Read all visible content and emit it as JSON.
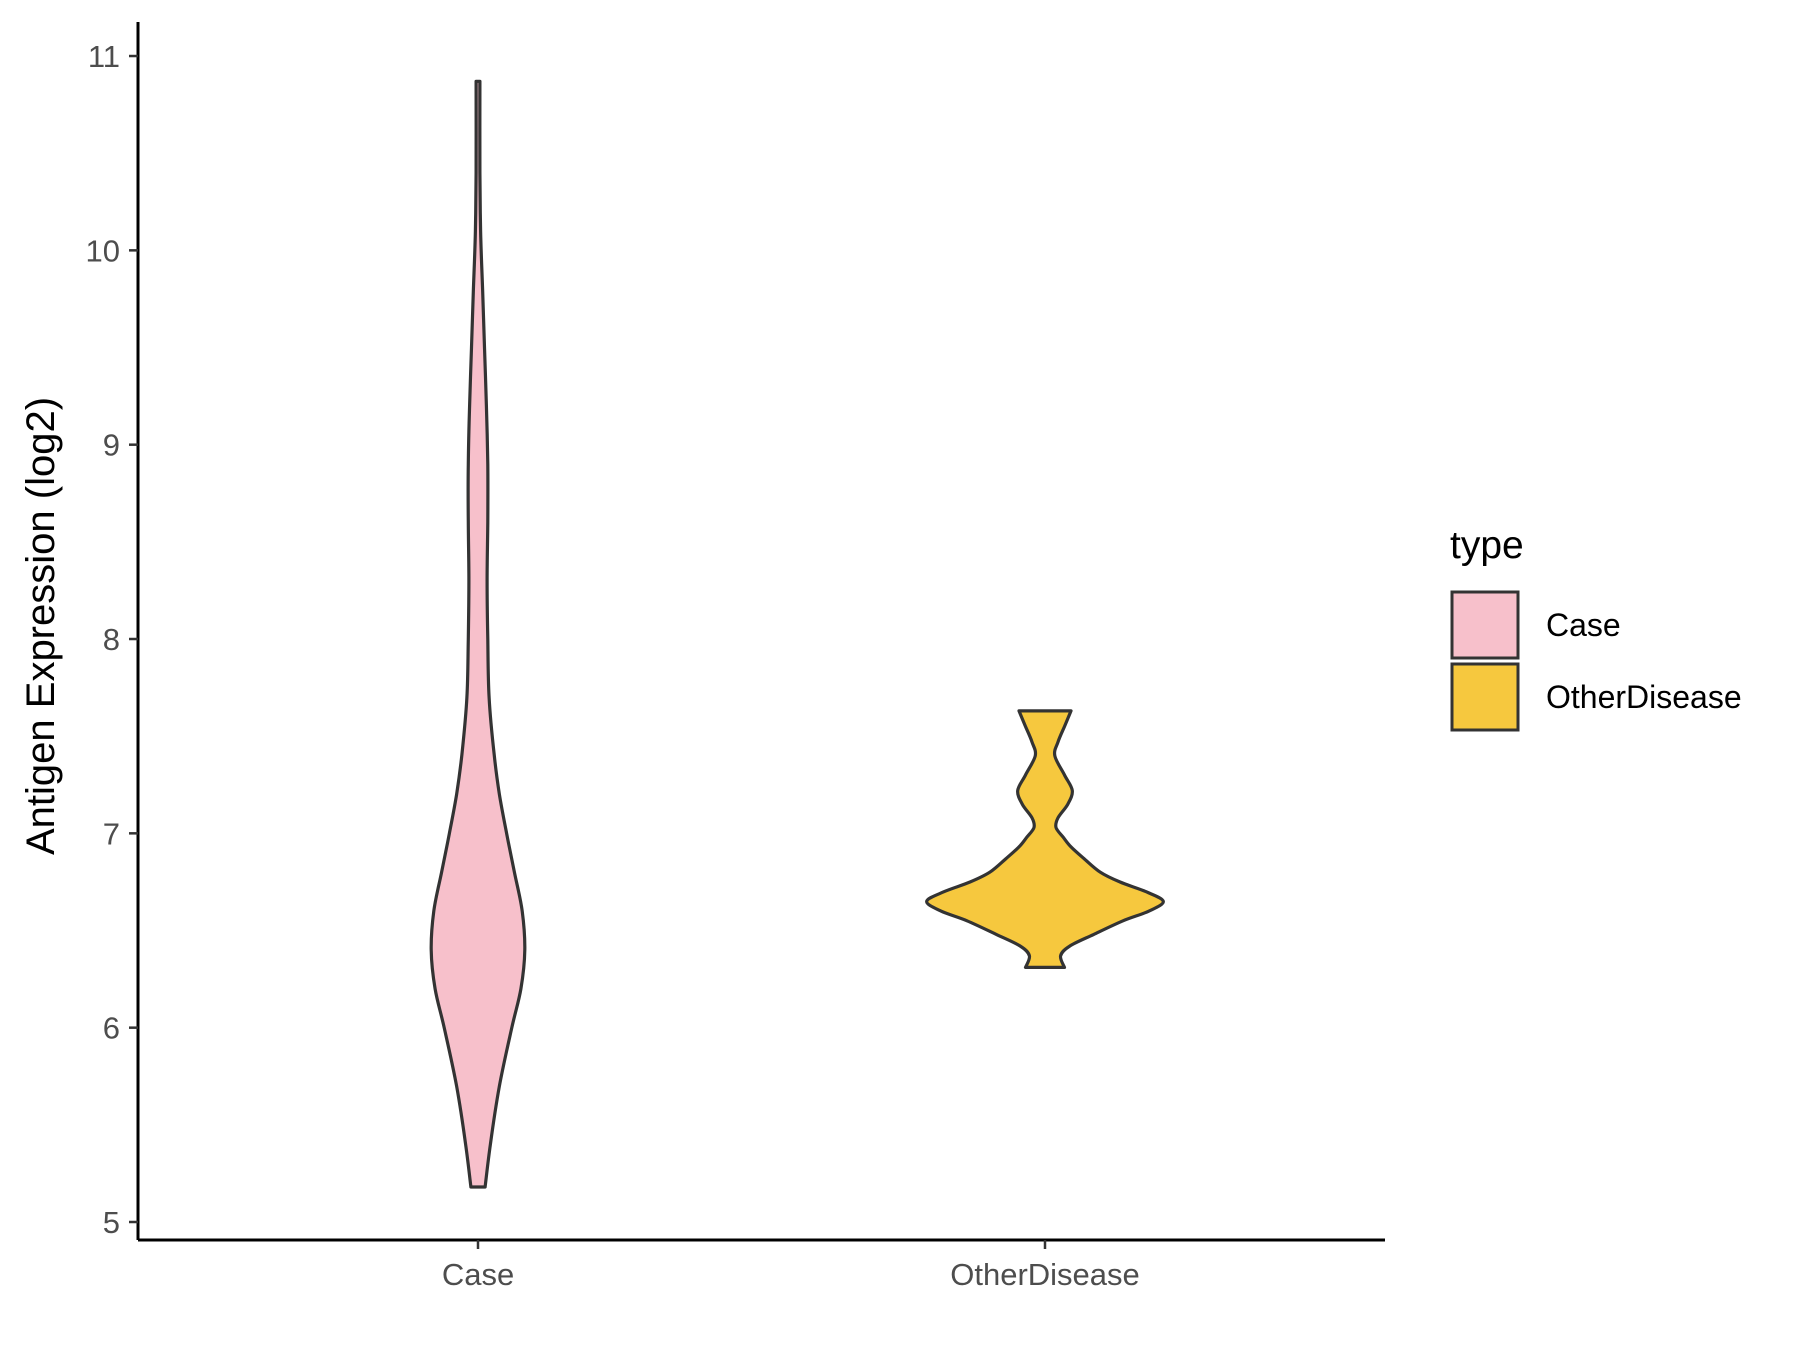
{
  "chart_data": {
    "type": "violin",
    "title": "",
    "xlabel": "",
    "ylabel": "Antigen Expression (log2)",
    "ylim": [
      4.95,
      11.2
    ],
    "yticks": [
      "5",
      "6",
      "7",
      "8",
      "9",
      "10",
      "11"
    ],
    "categories": [
      "Case",
      "OtherDisease"
    ],
    "grid": false,
    "legend": {
      "title": "type",
      "position": "right",
      "entries": [
        "Case",
        "OtherDisease"
      ]
    },
    "series": [
      {
        "category": "Case",
        "color": "#F7C0CB",
        "min": 5.18,
        "max": 10.87,
        "density_profile": [
          [
            5.18,
            0.11
          ],
          [
            5.4,
            0.19
          ],
          [
            5.7,
            0.33
          ],
          [
            6.0,
            0.52
          ],
          [
            6.2,
            0.66
          ],
          [
            6.4,
            0.72
          ],
          [
            6.6,
            0.68
          ],
          [
            6.8,
            0.56
          ],
          [
            7.0,
            0.44
          ],
          [
            7.2,
            0.33
          ],
          [
            7.4,
            0.25
          ],
          [
            7.7,
            0.17
          ],
          [
            8.0,
            0.15
          ],
          [
            8.3,
            0.14
          ],
          [
            8.6,
            0.15
          ],
          [
            8.9,
            0.15
          ],
          [
            9.2,
            0.13
          ],
          [
            9.5,
            0.1
          ],
          [
            9.8,
            0.07
          ],
          [
            10.1,
            0.04
          ],
          [
            10.4,
            0.03
          ],
          [
            10.87,
            0.03
          ]
        ]
      },
      {
        "category": "OtherDisease",
        "color": "#F6C83E",
        "min": 6.31,
        "max": 7.63,
        "density_profile": [
          [
            6.31,
            0.3
          ],
          [
            6.37,
            0.24
          ],
          [
            6.42,
            0.38
          ],
          [
            6.48,
            0.75
          ],
          [
            6.55,
            1.2
          ],
          [
            6.6,
            1.6
          ],
          [
            6.65,
            1.82
          ],
          [
            6.7,
            1.55
          ],
          [
            6.75,
            1.15
          ],
          [
            6.8,
            0.85
          ],
          [
            6.87,
            0.6
          ],
          [
            6.93,
            0.4
          ],
          [
            6.98,
            0.28
          ],
          [
            7.03,
            0.17
          ],
          [
            7.08,
            0.2
          ],
          [
            7.15,
            0.35
          ],
          [
            7.22,
            0.42
          ],
          [
            7.3,
            0.3
          ],
          [
            7.4,
            0.15
          ],
          [
            7.47,
            0.2
          ],
          [
            7.55,
            0.3
          ],
          [
            7.63,
            0.4
          ]
        ]
      }
    ]
  }
}
